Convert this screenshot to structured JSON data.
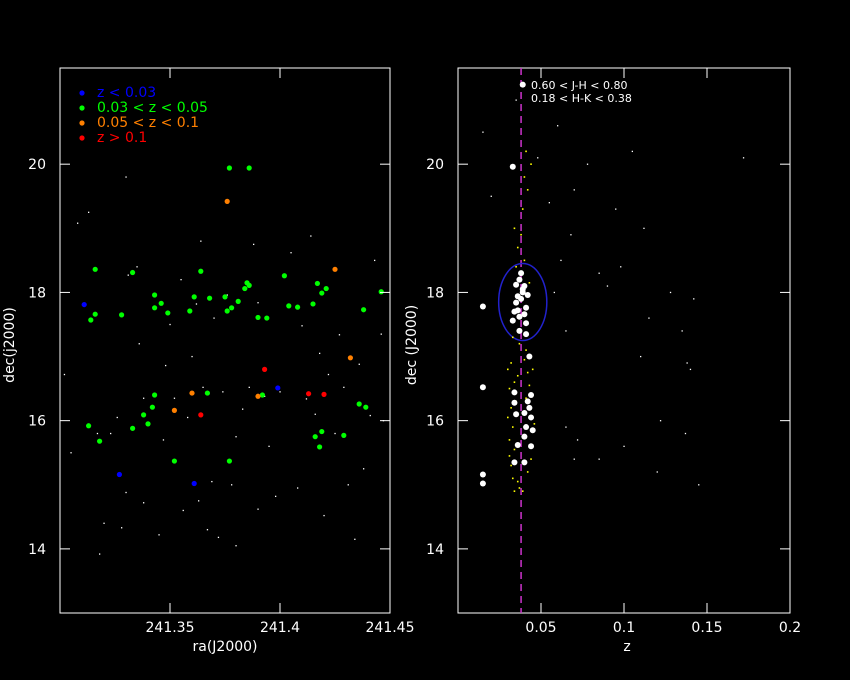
{
  "chart_data": [
    {
      "type": "scatter",
      "xlabel": "ra(J2000)",
      "ylabel": "dec(j2000)",
      "xlim": [
        241.3,
        241.45
      ],
      "ylim": [
        13,
        21.5
      ],
      "x_ticks": [
        241.35,
        241.4,
        241.45
      ],
      "x_tick_labels": [
        "241.35",
        "241.4",
        "241.45"
      ],
      "y_ticks": [
        14,
        16,
        18,
        20
      ],
      "y_tick_labels": [
        "14",
        "16",
        "18",
        "20"
      ],
      "legend_position": "top-left",
      "series": [
        {
          "name": "z < 0.03",
          "color": "#0000ff",
          "points": [
            [
              241.311,
              17.81
            ],
            [
              241.327,
              15.16
            ],
            [
              241.361,
              15.02
            ],
            [
              241.399,
              16.51
            ]
          ]
        },
        {
          "name": "0.03 < z < 0.05",
          "color": "#00ff00",
          "points": [
            [
              241.316,
              18.36
            ],
            [
              241.333,
              18.31
            ],
            [
              241.364,
              18.33
            ],
            [
              241.385,
              18.15
            ],
            [
              241.402,
              18.26
            ],
            [
              241.417,
              18.14
            ],
            [
              241.421,
              18.06
            ],
            [
              241.446,
              18.01
            ],
            [
              241.343,
              17.96
            ],
            [
              241.346,
              17.83
            ],
            [
              241.343,
              17.76
            ],
            [
              241.349,
              17.68
            ],
            [
              241.361,
              17.93
            ],
            [
              241.359,
              17.71
            ],
            [
              241.368,
              17.91
            ],
            [
              241.375,
              17.93
            ],
            [
              241.378,
              17.76
            ],
            [
              241.381,
              17.86
            ],
            [
              241.384,
              18.06
            ],
            [
              241.386,
              18.11
            ],
            [
              241.39,
              17.61
            ],
            [
              241.394,
              17.6
            ],
            [
              241.404,
              17.79
            ],
            [
              241.408,
              17.77
            ],
            [
              241.415,
              17.82
            ],
            [
              241.419,
              17.99
            ],
            [
              241.438,
              17.73
            ],
            [
              241.314,
              17.57
            ],
            [
              241.316,
              17.66
            ],
            [
              241.328,
              17.65
            ],
            [
              241.376,
              17.71
            ],
            [
              241.313,
              15.92
            ],
            [
              241.318,
              15.68
            ],
            [
              241.333,
              15.88
            ],
            [
              241.338,
              16.09
            ],
            [
              241.34,
              15.95
            ],
            [
              241.342,
              16.21
            ],
            [
              241.343,
              16.4
            ],
            [
              241.352,
              15.37
            ],
            [
              241.367,
              16.43
            ],
            [
              241.377,
              15.37
            ],
            [
              241.392,
              16.4
            ],
            [
              241.429,
              15.77
            ],
            [
              241.416,
              15.75
            ],
            [
              241.419,
              15.83
            ],
            [
              241.418,
              15.59
            ],
            [
              241.436,
              16.26
            ],
            [
              241.439,
              16.21
            ],
            [
              241.377,
              19.94
            ],
            [
              241.386,
              19.94
            ]
          ]
        },
        {
          "name": "0.05 < z < 0.1",
          "color": "#ff8000",
          "points": [
            [
              241.376,
              19.42
            ],
            [
              241.425,
              18.36
            ],
            [
              241.432,
              16.98
            ],
            [
              241.39,
              16.38
            ],
            [
              241.36,
              16.43
            ],
            [
              241.352,
              16.16
            ]
          ]
        },
        {
          "name": "z > 0.1",
          "color": "#ff0000",
          "points": [
            [
              241.393,
              16.8
            ],
            [
              241.364,
              16.09
            ],
            [
              241.413,
              16.42
            ],
            [
              241.42,
              16.41
            ]
          ]
        }
      ],
      "background_points": [
        [
          241.302,
          16.72
        ],
        [
          241.305,
          15.5
        ],
        [
          241.308,
          19.08
        ],
        [
          241.313,
          19.25
        ],
        [
          241.317,
          15.8
        ],
        [
          241.318,
          13.92
        ],
        [
          241.32,
          14.4
        ],
        [
          241.323,
          15.8
        ],
        [
          241.326,
          16.05
        ],
        [
          241.328,
          14.33
        ],
        [
          241.33,
          14.88
        ],
        [
          241.331,
          18.27
        ],
        [
          241.335,
          18.4
        ],
        [
          241.338,
          14.72
        ],
        [
          241.338,
          16.35
        ],
        [
          241.345,
          14.22
        ],
        [
          241.347,
          15.7
        ],
        [
          241.348,
          16.86
        ],
        [
          241.35,
          17.5
        ],
        [
          241.352,
          16.35
        ],
        [
          241.356,
          14.6
        ],
        [
          241.358,
          16.05
        ],
        [
          241.36,
          17.0
        ],
        [
          241.362,
          17.82
        ],
        [
          241.363,
          14.75
        ],
        [
          241.365,
          16.52
        ],
        [
          241.367,
          14.3
        ],
        [
          241.369,
          15.05
        ],
        [
          241.37,
          17.6
        ],
        [
          241.372,
          14.18
        ],
        [
          241.374,
          16.45
        ],
        [
          241.376,
          17.96
        ],
        [
          241.378,
          15.0
        ],
        [
          241.38,
          15.75
        ],
        [
          241.38,
          14.05
        ],
        [
          241.383,
          16.18
        ],
        [
          241.386,
          16.52
        ],
        [
          241.388,
          18.75
        ],
        [
          241.39,
          14.62
        ],
        [
          241.393,
          16.38
        ],
        [
          241.395,
          15.6
        ],
        [
          241.398,
          14.82
        ],
        [
          241.4,
          16.45
        ],
        [
          241.402,
          18.25
        ],
        [
          241.405,
          18.62
        ],
        [
          241.408,
          14.95
        ],
        [
          241.41,
          17.48
        ],
        [
          241.412,
          16.34
        ],
        [
          241.414,
          18.88
        ],
        [
          241.416,
          16.1
        ],
        [
          241.418,
          17.05
        ],
        [
          241.42,
          14.52
        ],
        [
          241.422,
          16.72
        ],
        [
          241.425,
          15.8
        ],
        [
          241.427,
          17.34
        ],
        [
          241.429,
          16.52
        ],
        [
          241.431,
          15.0
        ],
        [
          241.434,
          14.15
        ],
        [
          241.436,
          16.88
        ],
        [
          241.438,
          15.25
        ],
        [
          241.441,
          16.08
        ],
        [
          241.443,
          18.5
        ],
        [
          241.446,
          17.35
        ],
        [
          241.447,
          16.0
        ],
        [
          241.33,
          19.8
        ],
        [
          241.364,
          18.8
        ],
        [
          241.336,
          17.2
        ],
        [
          241.39,
          17.84
        ],
        [
          241.355,
          18.2
        ]
      ]
    },
    {
      "type": "scatter",
      "xlabel": "z",
      "ylabel": "dec (J2000)",
      "xlim": [
        0,
        0.2
      ],
      "ylim": [
        13,
        21.5
      ],
      "x_ticks": [
        0.05,
        0.1,
        0.15,
        0.2
      ],
      "x_tick_labels": [
        "0.05",
        "0.1",
        "0.15",
        "0.2"
      ],
      "y_ticks": [
        14,
        16,
        18,
        20
      ],
      "y_tick_labels": [
        "14",
        "16",
        "18",
        "20"
      ],
      "annotations": [
        "0.60 < J-H < 0.80",
        "0.18 < H-K < 0.38"
      ],
      "reference_line_z": 0.038,
      "reference_line_color": "#cc33cc",
      "ellipse": {
        "center": [
          0.039,
          17.85
        ],
        "half_width_z": 0.0145,
        "half_height_dec": 0.6,
        "color": "#2222cc"
      },
      "white_points": [
        [
          0.039,
          21.24
        ],
        [
          0.033,
          19.96
        ],
        [
          0.015,
          17.78
        ],
        [
          0.015,
          16.52
        ],
        [
          0.015,
          15.16
        ],
        [
          0.015,
          15.02
        ],
        [
          0.034,
          15.35
        ],
        [
          0.04,
          15.35
        ],
        [
          0.043,
          17.0
        ],
        [
          0.034,
          16.44
        ],
        [
          0.034,
          16.28
        ],
        [
          0.035,
          16.1
        ],
        [
          0.036,
          15.62
        ],
        [
          0.041,
          15.9
        ],
        [
          0.043,
          16.2
        ],
        [
          0.044,
          16.4
        ],
        [
          0.044,
          16.05
        ],
        [
          0.045,
          15.85
        ],
        [
          0.04,
          15.75
        ],
        [
          0.041,
          17.52
        ],
        [
          0.033,
          17.56
        ],
        [
          0.034,
          17.7
        ],
        [
          0.035,
          17.84
        ],
        [
          0.036,
          17.94
        ],
        [
          0.037,
          17.62
        ],
        [
          0.038,
          17.9
        ],
        [
          0.039,
          18.0
        ],
        [
          0.04,
          18.1
        ],
        [
          0.041,
          17.76
        ],
        [
          0.042,
          17.96
        ],
        [
          0.037,
          18.2
        ],
        [
          0.038,
          18.3
        ],
        [
          0.039,
          18.05
        ],
        [
          0.036,
          17.72
        ],
        [
          0.041,
          17.35
        ],
        [
          0.037,
          17.4
        ],
        [
          0.04,
          17.66
        ],
        [
          0.035,
          18.12
        ],
        [
          0.042,
          16.3
        ],
        [
          0.044,
          15.6
        ],
        [
          0.04,
          16.12
        ]
      ],
      "yellow_points": [
        [
          0.03,
          16.8
        ],
        [
          0.031,
          16.5
        ],
        [
          0.032,
          16.2
        ],
        [
          0.033,
          15.9
        ],
        [
          0.034,
          16.6
        ],
        [
          0.031,
          15.7
        ],
        [
          0.032,
          15.3
        ],
        [
          0.033,
          15.1
        ],
        [
          0.034,
          14.9
        ],
        [
          0.036,
          16.7
        ],
        [
          0.035,
          16.3
        ],
        [
          0.031,
          15.45
        ],
        [
          0.03,
          16.05
        ],
        [
          0.032,
          16.9
        ],
        [
          0.034,
          15.55
        ],
        [
          0.036,
          15.05
        ],
        [
          0.037,
          14.95
        ],
        [
          0.042,
          16.75
        ],
        [
          0.043,
          16.55
        ],
        [
          0.041,
          16.35
        ],
        [
          0.04,
          16.95
        ],
        [
          0.042,
          15.2
        ],
        [
          0.039,
          14.9
        ],
        [
          0.036,
          18.7
        ],
        [
          0.038,
          18.9
        ],
        [
          0.04,
          18.5
        ],
        [
          0.037,
          17.2
        ],
        [
          0.041,
          17.1
        ],
        [
          0.039,
          19.3
        ],
        [
          0.042,
          19.6
        ],
        [
          0.035,
          18.4
        ],
        [
          0.033,
          17.3
        ],
        [
          0.045,
          16.8
        ],
        [
          0.046,
          15.95
        ],
        [
          0.044,
          15.4
        ],
        [
          0.043,
          18.15
        ],
        [
          0.034,
          19.0
        ],
        [
          0.04,
          19.8
        ],
        [
          0.041,
          20.2
        ],
        [
          0.044,
          20.0
        ]
      ],
      "outlier_points": [
        [
          0.015,
          20.5
        ],
        [
          0.02,
          19.5
        ],
        [
          0.035,
          21.0
        ],
        [
          0.048,
          20.1
        ],
        [
          0.055,
          19.4
        ],
        [
          0.058,
          18.0
        ],
        [
          0.062,
          18.5
        ],
        [
          0.065,
          17.4
        ],
        [
          0.068,
          18.9
        ],
        [
          0.07,
          15.4
        ],
        [
          0.072,
          15.7
        ],
        [
          0.078,
          20.0
        ],
        [
          0.085,
          18.3
        ],
        [
          0.09,
          18.1
        ],
        [
          0.095,
          19.3
        ],
        [
          0.098,
          18.4
        ],
        [
          0.1,
          15.6
        ],
        [
          0.105,
          20.2
        ],
        [
          0.11,
          17.0
        ],
        [
          0.112,
          19.0
        ],
        [
          0.115,
          17.6
        ],
        [
          0.12,
          15.2
        ],
        [
          0.122,
          16.0
        ],
        [
          0.128,
          18.0
        ],
        [
          0.135,
          17.4
        ],
        [
          0.137,
          15.8
        ],
        [
          0.138,
          16.9
        ],
        [
          0.14,
          16.8
        ],
        [
          0.142,
          17.9
        ],
        [
          0.145,
          15.0
        ],
        [
          0.172,
          20.1
        ],
        [
          0.065,
          15.9
        ],
        [
          0.06,
          20.6
        ],
        [
          0.07,
          19.6
        ],
        [
          0.085,
          15.4
        ]
      ]
    }
  ]
}
